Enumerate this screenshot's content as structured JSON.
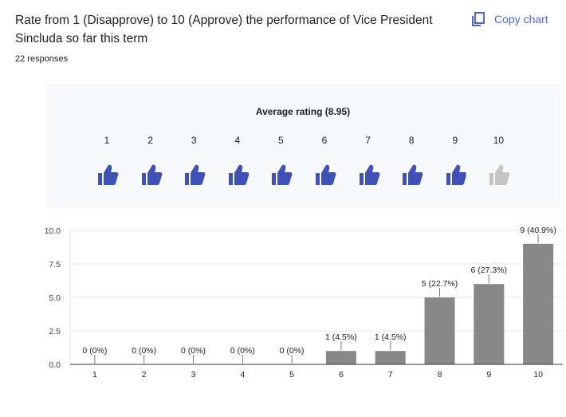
{
  "question": {
    "title": "Rate from 1 (Disapprove) to 10 (Approve) the performance of Vice President Sincluda so far this term",
    "responses": "22 responses"
  },
  "toolbar": {
    "copy_label": "Copy chart"
  },
  "rating": {
    "average_label": "Average rating (8.95)",
    "average": 8.95,
    "scale": [
      "1",
      "2",
      "3",
      "4",
      "5",
      "6",
      "7",
      "8",
      "9",
      "10"
    ],
    "icon": "thumbs-up-icon",
    "filled_color": "#3f51b5",
    "empty_color": "#c5c5c5"
  },
  "chart_data": {
    "type": "bar",
    "categories": [
      "1",
      "2",
      "3",
      "4",
      "5",
      "6",
      "7",
      "8",
      "9",
      "10"
    ],
    "values": [
      0,
      0,
      0,
      0,
      0,
      1,
      1,
      5,
      6,
      9
    ],
    "data_labels": [
      "0 (0%)",
      "0 (0%)",
      "0 (0%)",
      "0 (0%)",
      "0 (0%)",
      "1 (4.5%)",
      "1 (4.5%)",
      "5 (22.7%)",
      "6 (27.3%)",
      "9 (40.9%)"
    ],
    "yticks": [
      "0.0",
      "2.5",
      "5.0",
      "7.5",
      "10.0"
    ],
    "ytick_values": [
      0,
      2.5,
      5,
      7.5,
      10
    ],
    "ylim": [
      0,
      10
    ],
    "grid": true,
    "bar_color": "#888888",
    "title": "",
    "xlabel": "",
    "ylabel": ""
  }
}
